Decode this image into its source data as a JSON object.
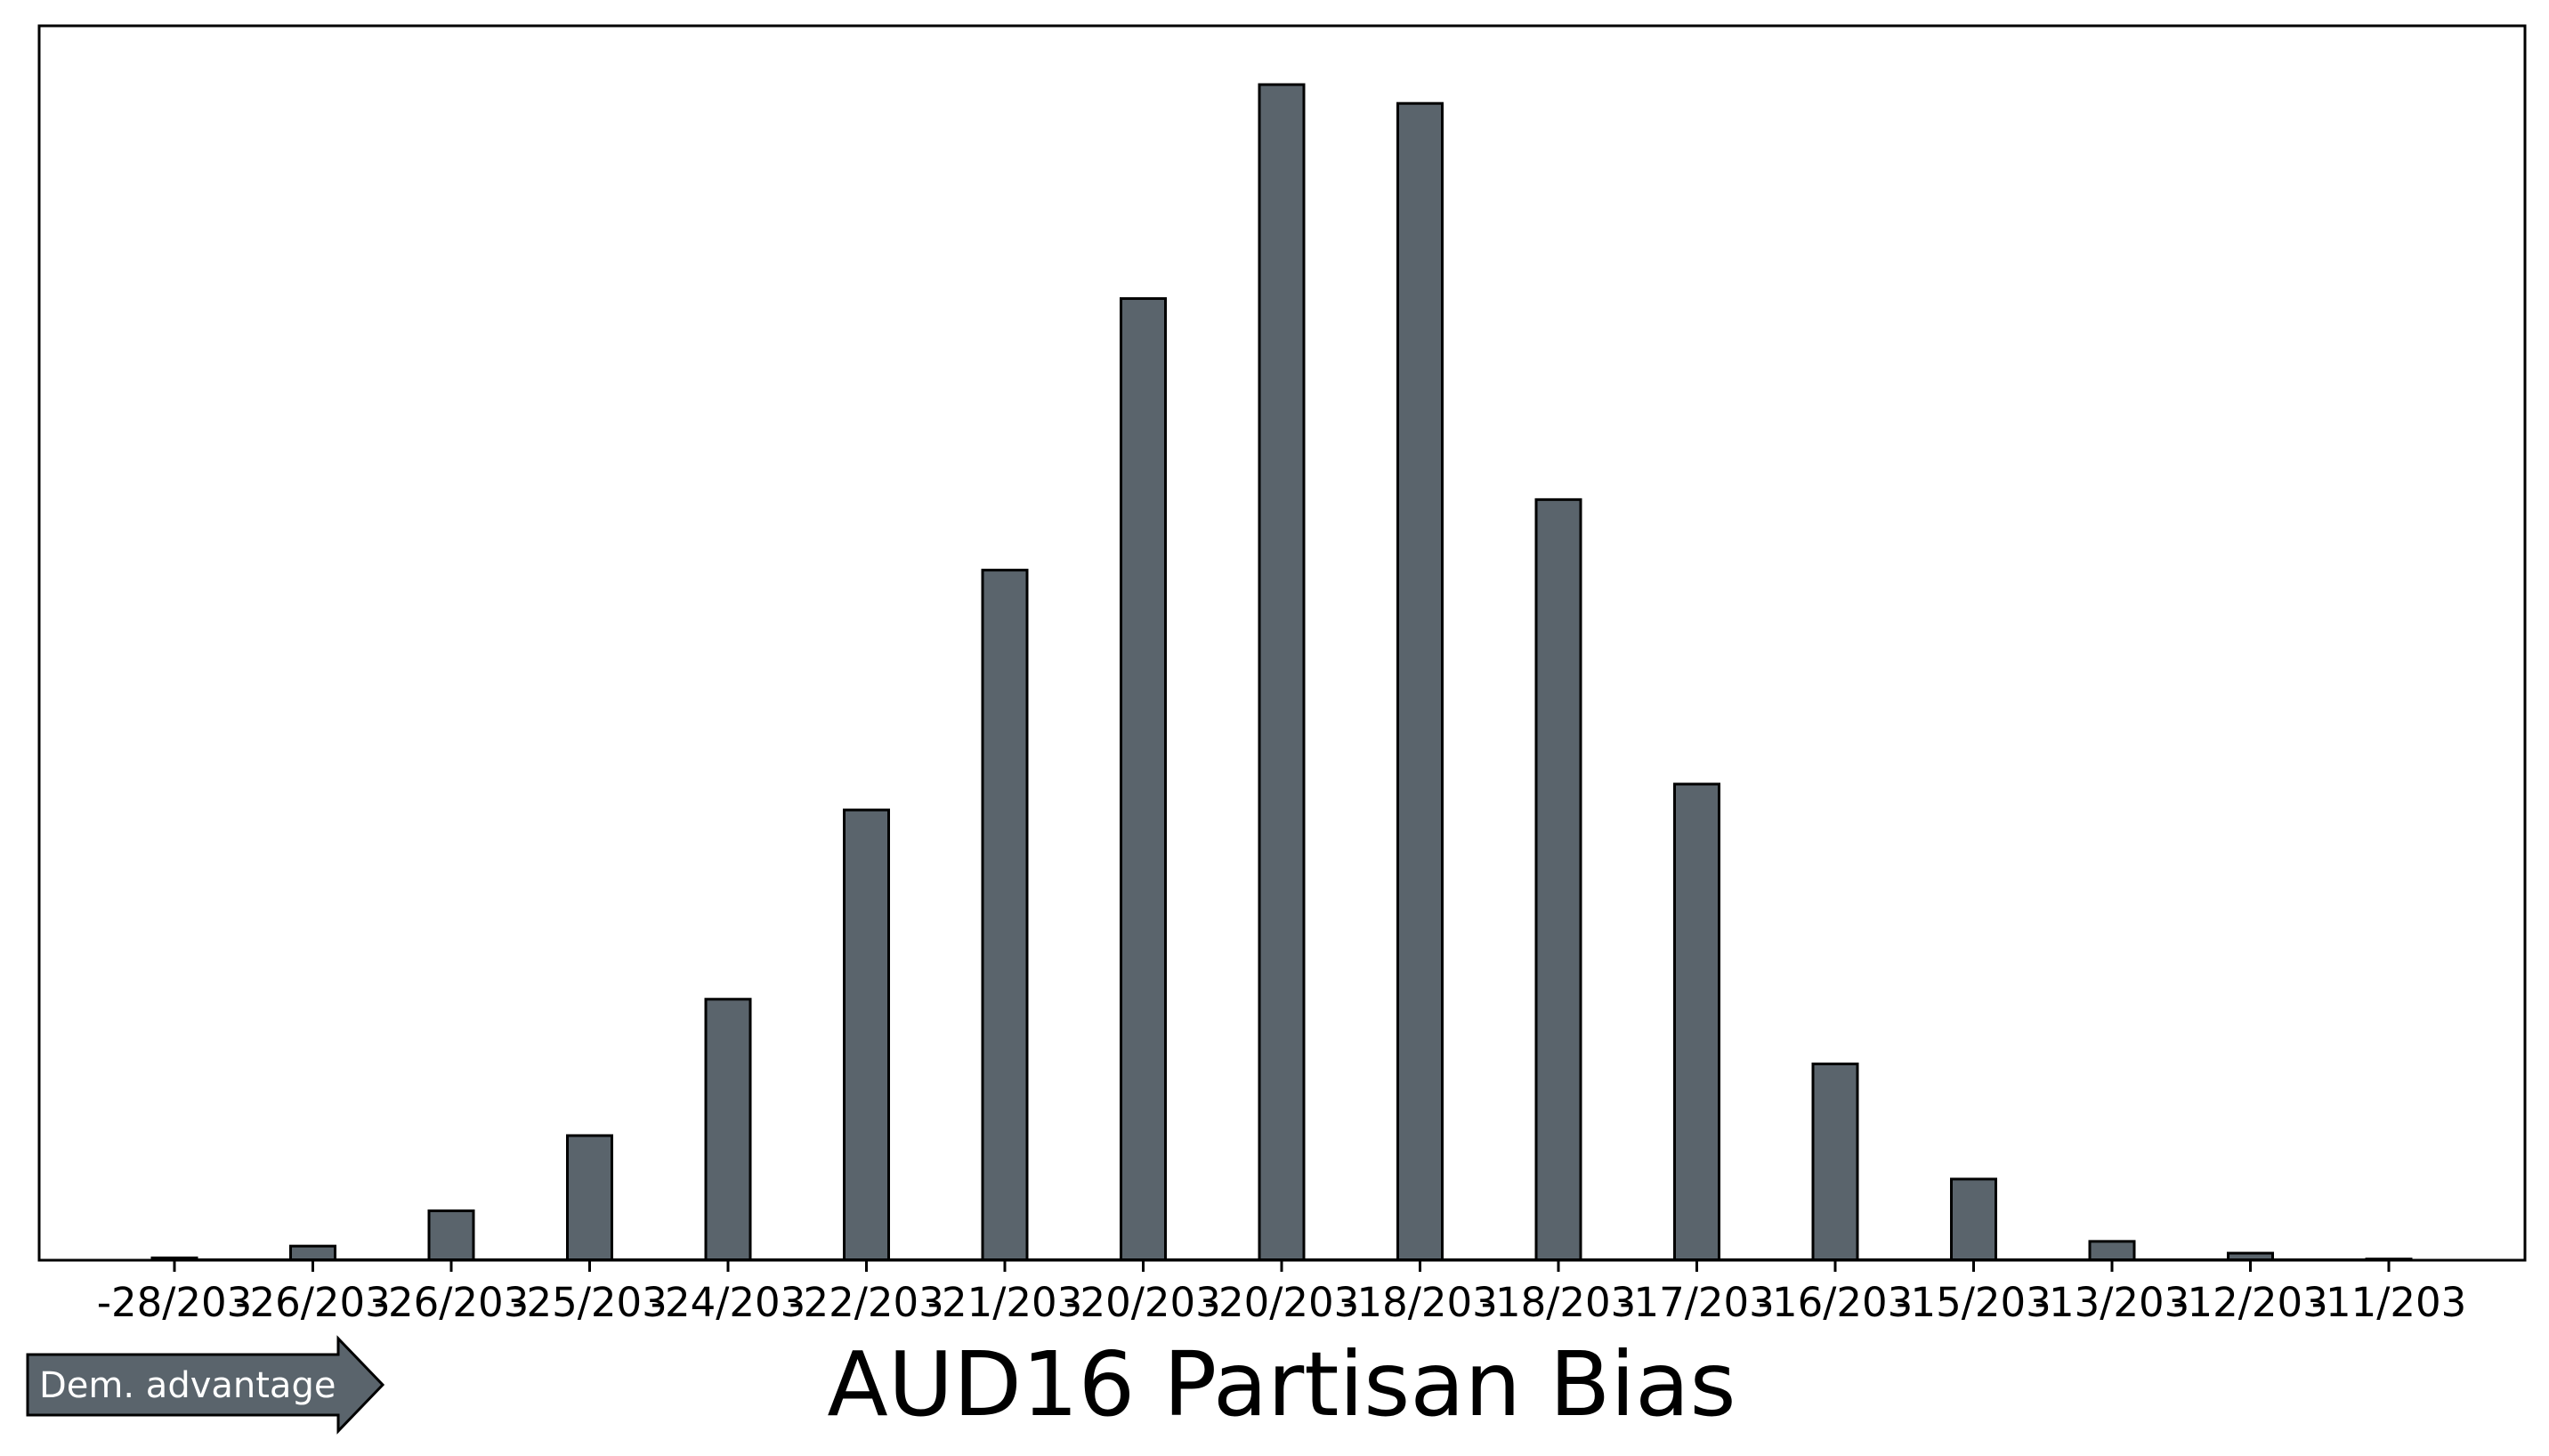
{
  "colors": {
    "bar_fill": "#5a646c",
    "bar_edge": "#000000",
    "axis": "#000000",
    "background": "#ffffff",
    "arrow_fill": "#5a646c",
    "arrow_text": "#ffffff"
  },
  "annotation": {
    "arrow_label": "Dem. advantage",
    "arrow_direction": "right",
    "arrow_placement": "bottom-left"
  },
  "chart_data": {
    "type": "bar",
    "title": "AUD16 Partisan Bias",
    "xlabel": "",
    "ylabel": "",
    "y_ticks_visible": false,
    "grid": false,
    "legend": "none",
    "categories": [
      "-28/203",
      "-26/203",
      "-26/203",
      "-25/203",
      "-24/203",
      "-22/203",
      "-21/203",
      "-20/203",
      "-20/203",
      "-18/203",
      "-18/203",
      "-17/203",
      "-16/203",
      "-15/203",
      "-13/203",
      "-12/203",
      "-11/203"
    ],
    "values": [
      2,
      12,
      42,
      106,
      222,
      383,
      587,
      818,
      1000,
      984,
      647,
      405,
      167,
      69,
      16,
      6,
      1
    ],
    "ylim": [
      0,
      1050
    ]
  }
}
